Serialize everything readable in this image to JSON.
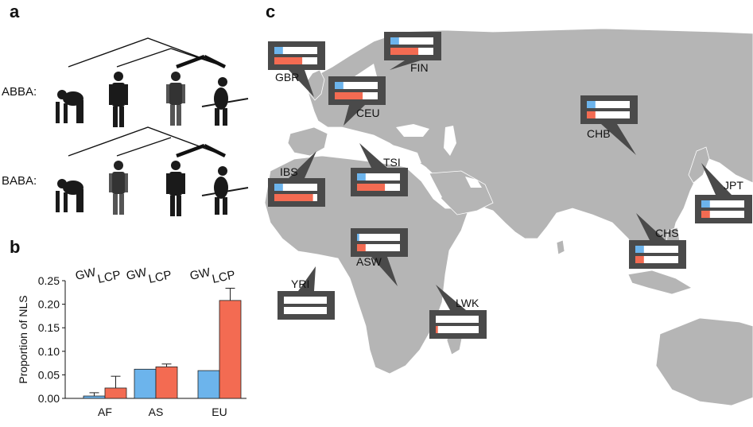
{
  "panels": {
    "a": {
      "letter": "a",
      "patterns": [
        "ABBA:",
        "BABA:"
      ]
    },
    "b": {
      "letter": "b"
    },
    "c": {
      "letter": "c"
    }
  },
  "chart_data": [
    {
      "type": "bar",
      "title": "",
      "ylabel": "Proportion of NLS",
      "xlabel": "",
      "categories": [
        "AF",
        "AS",
        "EU"
      ],
      "column_labels": [
        "GW",
        "LCP"
      ],
      "series": [
        {
          "name": "GW",
          "values": [
            0.005,
            0.062,
            0.059
          ],
          "errors": [
            0.007,
            0.0,
            0.0
          ],
          "color": "#6cb4ec"
        },
        {
          "name": "LCP",
          "values": [
            0.022,
            0.067,
            0.208
          ],
          "errors": [
            0.025,
            0.006,
            0.026
          ],
          "color": "#f36b52"
        }
      ],
      "ylim": [
        0,
        0.25
      ],
      "yticks": [
        "0.00",
        "0.05",
        "0.10",
        "0.15",
        "0.20",
        "0.25"
      ],
      "grid": false
    },
    {
      "type": "bar",
      "title": "",
      "description_of_layout": "",
      "categories": [
        "GBR",
        "FIN",
        "CEU",
        "CHB",
        "IBS",
        "TSI",
        "JPT",
        "ASW",
        "CHS",
        "YRI",
        "LWK"
      ],
      "series": [
        {
          "name": "GW",
          "values": [
            0.2,
            0.2,
            0.2,
            0.2,
            0.2,
            0.2,
            0.2,
            0.05,
            0.2,
            0.0,
            0.0
          ],
          "color": "#6cb4ec"
        },
        {
          "name": "LCP",
          "values": [
            0.65,
            0.65,
            0.65,
            0.2,
            0.9,
            0.65,
            0.2,
            0.2,
            0.2,
            0.0,
            0.05
          ],
          "color": "#f36b52"
        }
      ],
      "ylim": [
        0,
        1
      ]
    }
  ]
}
